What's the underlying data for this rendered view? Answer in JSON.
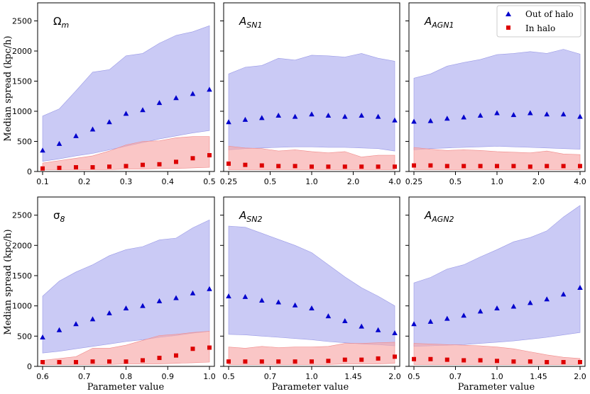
{
  "ylabel": "Median spread (kpc/h)",
  "xlabel": "Parameter value",
  "legend": {
    "position": "top-right",
    "entries": [
      {
        "label": "Out of halo",
        "color": "#0000cc",
        "marker": "triangle"
      },
      {
        "label": "In halo",
        "color": "#dd0000",
        "marker": "square"
      }
    ]
  },
  "colors": {
    "out_band": "#b8b8f2",
    "in_band": "#f7a8a8",
    "out_marker": "#0000cc",
    "in_marker": "#dd0000"
  },
  "chart_data": [
    {
      "type": "scatter",
      "panel_label": "Ω_m",
      "label_main": "Ω",
      "label_sub": "m",
      "label_italic_main": false,
      "xlim": [
        0.1,
        0.5
      ],
      "ylim": [
        0,
        2800
      ],
      "xticks": [
        "0.1",
        "0.2",
        "0.3",
        "0.4",
        "0.5"
      ],
      "yticks": [
        "0",
        "500",
        "1000",
        "1500",
        "2000",
        "2500"
      ],
      "x": [
        0.1,
        0.14,
        0.18,
        0.22,
        0.26,
        0.3,
        0.34,
        0.38,
        0.42,
        0.46,
        0.5
      ],
      "series": [
        {
          "name": "Out of halo",
          "values": [
            350,
            460,
            590,
            700,
            820,
            960,
            1020,
            1140,
            1220,
            1290,
            1360
          ],
          "band_low": [
            170,
            210,
            260,
            300,
            360,
            420,
            480,
            540,
            590,
            640,
            680
          ],
          "band_high": [
            920,
            1040,
            1340,
            1650,
            1690,
            1920,
            1960,
            2130,
            2260,
            2320,
            2420
          ]
        },
        {
          "name": "In halo",
          "values": [
            50,
            60,
            70,
            70,
            80,
            90,
            110,
            120,
            160,
            220,
            270
          ],
          "band_low": [
            30,
            30,
            30,
            30,
            30,
            40,
            40,
            50,
            50,
            60,
            70
          ],
          "band_high": [
            140,
            180,
            220,
            260,
            340,
            440,
            500,
            510,
            560,
            580,
            580
          ]
        }
      ]
    },
    {
      "type": "scatter",
      "panel_label": "A_SN1",
      "label_main": "A",
      "label_sub": "SN1",
      "label_italic_main": true,
      "xlim": [
        0,
        10
      ],
      "ylim": [
        0,
        2800
      ],
      "xticks": [
        "0.25",
        "0.5",
        "1.0",
        "2.0",
        "4.0"
      ],
      "yticks": [],
      "x": [
        0,
        1,
        2,
        3,
        4,
        5,
        6,
        7,
        8,
        9,
        10
      ],
      "series": [
        {
          "name": "Out of halo",
          "values": [
            820,
            860,
            890,
            930,
            910,
            950,
            930,
            910,
            930,
            910,
            850
          ],
          "band_low": [
            360,
            380,
            390,
            400,
            410,
            410,
            400,
            400,
            390,
            380,
            340
          ],
          "band_high": [
            1620,
            1730,
            1760,
            1880,
            1850,
            1930,
            1920,
            1900,
            1960,
            1880,
            1830
          ]
        },
        {
          "name": "In halo",
          "values": [
            130,
            110,
            100,
            90,
            90,
            80,
            80,
            80,
            80,
            80,
            80
          ],
          "band_low": [
            30,
            30,
            30,
            30,
            30,
            30,
            30,
            30,
            30,
            30,
            30
          ],
          "band_high": [
            420,
            390,
            380,
            340,
            360,
            330,
            310,
            330,
            240,
            270,
            270
          ]
        }
      ]
    },
    {
      "type": "scatter",
      "panel_label": "A_AGN1",
      "label_main": "A",
      "label_sub": "AGN1",
      "label_italic_main": true,
      "xlim": [
        0,
        10
      ],
      "ylim": [
        0,
        2800
      ],
      "xticks": [
        "0.25",
        "0.5",
        "1.0",
        "2.0",
        "4.0"
      ],
      "yticks": [],
      "x": [
        0,
        1,
        2,
        3,
        4,
        5,
        6,
        7,
        8,
        9,
        10
      ],
      "series": [
        {
          "name": "Out of halo",
          "values": [
            830,
            840,
            880,
            900,
            930,
            970,
            940,
            970,
            950,
            950,
            910
          ],
          "band_low": [
            360,
            380,
            390,
            400,
            410,
            420,
            410,
            400,
            390,
            380,
            370
          ],
          "band_high": [
            1550,
            1620,
            1750,
            1810,
            1860,
            1940,
            1960,
            1990,
            1960,
            2030,
            1950
          ]
        },
        {
          "name": "In halo",
          "values": [
            100,
            100,
            90,
            90,
            90,
            90,
            90,
            80,
            90,
            90,
            90
          ],
          "band_low": [
            30,
            30,
            30,
            30,
            30,
            30,
            30,
            30,
            30,
            30,
            30
          ],
          "band_high": [
            400,
            370,
            350,
            360,
            350,
            330,
            320,
            310,
            340,
            290,
            280
          ]
        }
      ]
    },
    {
      "type": "scatter",
      "panel_label": "σ_8",
      "label_main": "σ",
      "label_sub": "8",
      "label_italic_main": false,
      "xlim": [
        0.6,
        1.0
      ],
      "ylim": [
        0,
        2800
      ],
      "xticks": [
        "0.6",
        "0.7",
        "0.8",
        "0.9",
        "1.0"
      ],
      "yticks": [
        "0",
        "500",
        "1000",
        "1500",
        "2000",
        "2500"
      ],
      "x": [
        0.6,
        0.64,
        0.68,
        0.72,
        0.76,
        0.8,
        0.84,
        0.88,
        0.92,
        0.96,
        1.0
      ],
      "series": [
        {
          "name": "Out of halo",
          "values": [
            480,
            600,
            700,
            780,
            880,
            960,
            1000,
            1080,
            1130,
            1210,
            1280
          ],
          "band_low": [
            220,
            250,
            290,
            330,
            370,
            410,
            440,
            480,
            510,
            550,
            580
          ],
          "band_high": [
            1160,
            1410,
            1560,
            1680,
            1830,
            1930,
            1980,
            2090,
            2120,
            2290,
            2420
          ]
        },
        {
          "name": "In halo",
          "values": [
            70,
            70,
            70,
            80,
            80,
            80,
            100,
            140,
            180,
            290,
            310
          ],
          "band_low": [
            30,
            30,
            30,
            30,
            30,
            40,
            40,
            40,
            50,
            60,
            70
          ],
          "band_high": [
            100,
            130,
            160,
            300,
            300,
            350,
            430,
            510,
            530,
            560,
            580
          ]
        }
      ]
    },
    {
      "type": "scatter",
      "panel_label": "A_SN2",
      "label_main": "A",
      "label_sub": "SN2",
      "label_italic_main": true,
      "xlim": [
        0,
        10
      ],
      "ylim": [
        0,
        2800
      ],
      "xticks": [
        "0.5",
        "0.7",
        "1.0",
        "1.45",
        "2.0"
      ],
      "yticks": [],
      "x": [
        0,
        1,
        2,
        3,
        4,
        5,
        6,
        7,
        8,
        9,
        10
      ],
      "series": [
        {
          "name": "Out of halo",
          "values": [
            1160,
            1150,
            1090,
            1060,
            1010,
            960,
            830,
            750,
            660,
            600,
            550
          ],
          "band_low": [
            530,
            520,
            500,
            480,
            460,
            440,
            410,
            390,
            370,
            360,
            340
          ],
          "band_high": [
            2320,
            2300,
            2200,
            2100,
            2000,
            1880,
            1680,
            1480,
            1300,
            1160,
            1000
          ]
        },
        {
          "name": "In halo",
          "values": [
            80,
            80,
            80,
            80,
            80,
            80,
            90,
            110,
            110,
            130,
            160
          ],
          "band_low": [
            30,
            30,
            30,
            30,
            30,
            30,
            30,
            40,
            40,
            40,
            50
          ],
          "band_high": [
            320,
            300,
            330,
            310,
            320,
            320,
            330,
            380,
            380,
            390,
            400
          ]
        }
      ]
    },
    {
      "type": "scatter",
      "panel_label": "A_AGN2",
      "label_main": "A",
      "label_sub": "AGN2",
      "label_italic_main": true,
      "xlim": [
        0,
        10
      ],
      "ylim": [
        0,
        2800
      ],
      "xticks": [
        "0.5",
        "0.7",
        "1.0",
        "1.45",
        "2.0"
      ],
      "yticks": [],
      "x": [
        0,
        1,
        2,
        3,
        4,
        5,
        6,
        7,
        8,
        9,
        10
      ],
      "series": [
        {
          "name": "Out of halo",
          "values": [
            700,
            740,
            790,
            840,
            910,
            960,
            990,
            1050,
            1110,
            1190,
            1300
          ],
          "band_low": [
            330,
            340,
            350,
            360,
            380,
            400,
            420,
            450,
            480,
            520,
            560
          ],
          "band_high": [
            1380,
            1470,
            1610,
            1680,
            1810,
            1930,
            2060,
            2130,
            2240,
            2470,
            2660
          ]
        },
        {
          "name": "In halo",
          "values": [
            120,
            120,
            110,
            100,
            100,
            90,
            80,
            80,
            70,
            70,
            70
          ],
          "band_low": [
            30,
            30,
            30,
            30,
            30,
            30,
            30,
            30,
            30,
            30,
            30
          ],
          "band_high": [
            380,
            370,
            360,
            350,
            340,
            320,
            290,
            240,
            190,
            150,
            130
          ]
        }
      ]
    }
  ]
}
